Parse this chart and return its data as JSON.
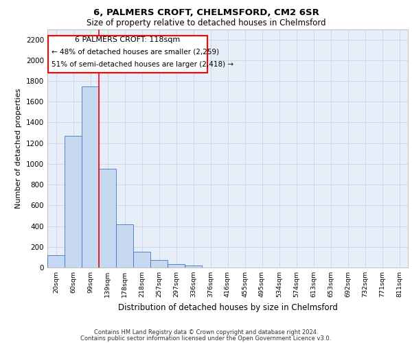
{
  "title1": "6, PALMERS CROFT, CHELMSFORD, CM2 6SR",
  "title2": "Size of property relative to detached houses in Chelmsford",
  "xlabel": "Distribution of detached houses by size in Chelmsford",
  "ylabel": "Number of detached properties",
  "footnote1": "Contains HM Land Registry data © Crown copyright and database right 2024.",
  "footnote2": "Contains public sector information licensed under the Open Government Licence v3.0.",
  "annotation_line1": "6 PALMERS CROFT: 118sqm",
  "annotation_line2": "← 48% of detached houses are smaller (2,259)",
  "annotation_line3": "51% of semi-detached houses are larger (2,418) →",
  "bar_color": "#c6d9f0",
  "bar_edge_color": "#4472c4",
  "red_line_x": 2.5,
  "categories": [
    "20sqm",
    "60sqm",
    "99sqm",
    "139sqm",
    "178sqm",
    "218sqm",
    "257sqm",
    "297sqm",
    "336sqm",
    "376sqm",
    "416sqm",
    "455sqm",
    "495sqm",
    "534sqm",
    "574sqm",
    "613sqm",
    "653sqm",
    "692sqm",
    "732sqm",
    "771sqm",
    "811sqm"
  ],
  "values": [
    120,
    1270,
    1750,
    950,
    415,
    150,
    75,
    35,
    22,
    0,
    0,
    0,
    0,
    0,
    0,
    0,
    0,
    0,
    0,
    0,
    0
  ],
  "ylim": [
    0,
    2300
  ],
  "yticks": [
    0,
    200,
    400,
    600,
    800,
    1000,
    1200,
    1400,
    1600,
    1800,
    2000,
    2200
  ],
  "grid_color": "#c8d4e8",
  "background_color": "#e8eef8"
}
